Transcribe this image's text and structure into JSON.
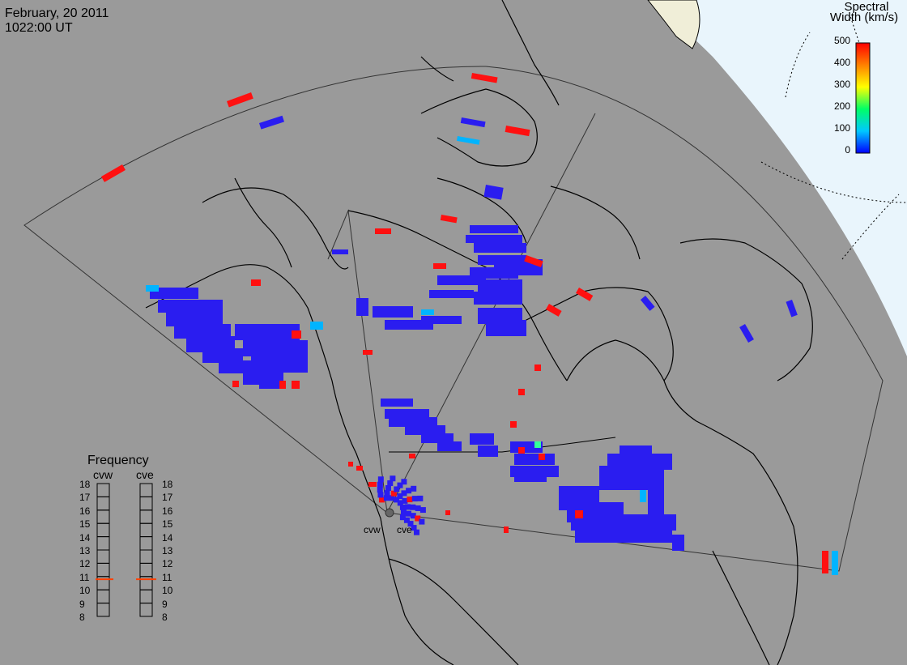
{
  "header": {
    "date": "February, 20 2011",
    "time": "1022:00 UT"
  },
  "colorbar": {
    "title_line1": "Spectral",
    "title_line2": "Width (km/s)",
    "ticks": [
      "500",
      "400",
      "300",
      "200",
      "100",
      "0"
    ],
    "range": [
      0,
      500
    ],
    "colors": [
      "#0000ff",
      "#00c8ff",
      "#00ff66",
      "#ffff00",
      "#ff8000",
      "#ff0000"
    ]
  },
  "frequency_panel": {
    "title": "Frequency",
    "columns": [
      {
        "name": "cvw",
        "current_mhz": 10.8
      },
      {
        "name": "cve",
        "current_mhz": 10.8
      }
    ],
    "scale": [
      "18",
      "17",
      "16",
      "15",
      "14",
      "13",
      "12",
      "11",
      "10",
      "9",
      "8"
    ]
  },
  "radars": [
    {
      "code": "cvw"
    },
    {
      "code": "cve"
    }
  ],
  "colors": {
    "background": "#9a9a9a",
    "coast": "#000000",
    "ice": "#e8f4fc",
    "scatter_low": "#2a1df0",
    "scatter_high": "#ff1010",
    "scatter_mid": "#00b4ff"
  }
}
